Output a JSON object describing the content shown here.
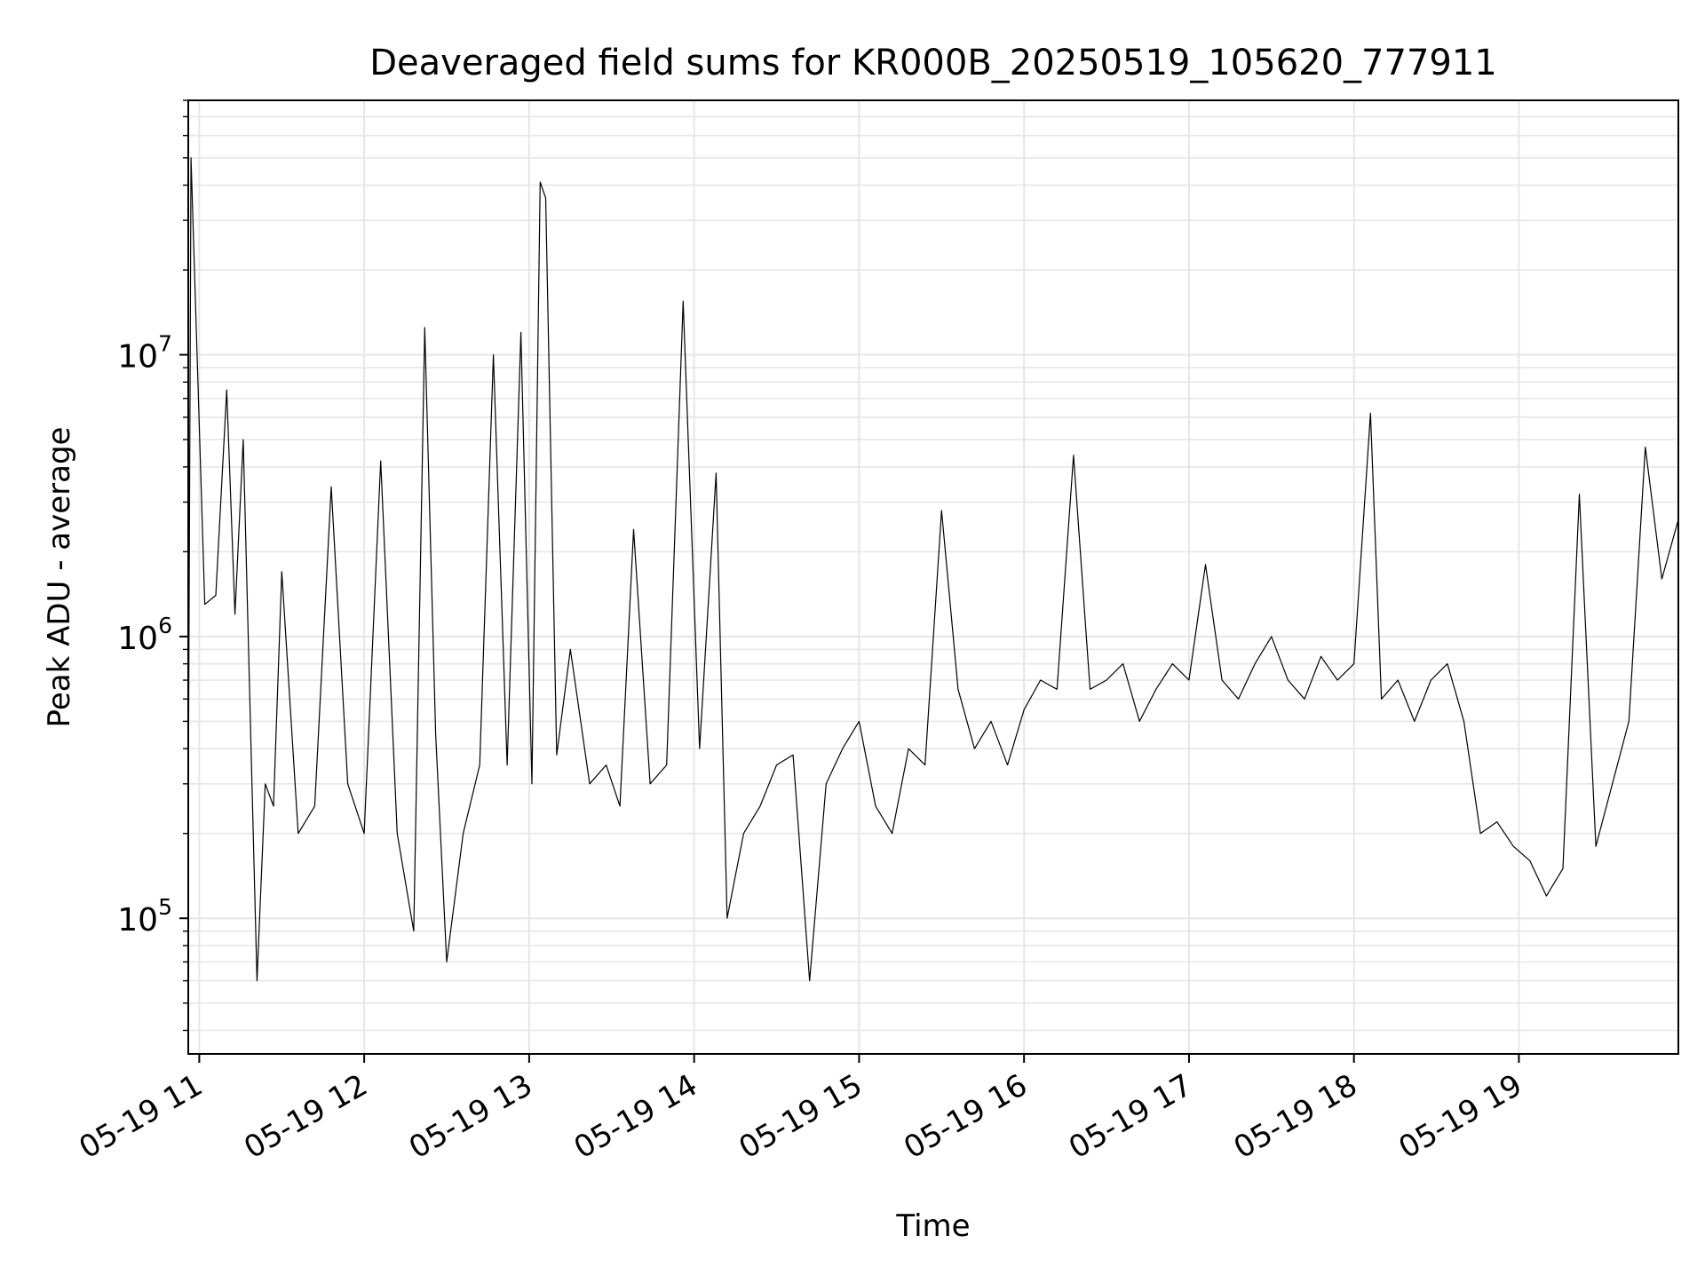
{
  "chart_data": {
    "type": "line",
    "title": "Deaveraged field sums for KR000B_20250519_105620_777911",
    "xlabel": "Time",
    "ylabel": "Peak ADU - average",
    "y_scale": "log",
    "ylim": [
      33000,
      80000000
    ],
    "xlim": [
      "05-19 10:56",
      "05-19 19:58"
    ],
    "grid": true,
    "grid_minor": true,
    "line_color": "#000000",
    "grid_color": "#e6e6e6",
    "x_ticks": [
      {
        "value": "05-19 11:00",
        "label": "05-19 11"
      },
      {
        "value": "05-19 12:00",
        "label": "05-19 12"
      },
      {
        "value": "05-19 13:00",
        "label": "05-19 13"
      },
      {
        "value": "05-19 14:00",
        "label": "05-19 14"
      },
      {
        "value": "05-19 15:00",
        "label": "05-19 15"
      },
      {
        "value": "05-19 16:00",
        "label": "05-19 16"
      },
      {
        "value": "05-19 17:00",
        "label": "05-19 17"
      },
      {
        "value": "05-19 18:00",
        "label": "05-19 18"
      },
      {
        "value": "05-19 19:00",
        "label": "05-19 19"
      }
    ],
    "y_ticks": [
      {
        "value": 100000,
        "base": "10",
        "exp": "5"
      },
      {
        "value": 1000000,
        "base": "10",
        "exp": "6"
      },
      {
        "value": 10000000,
        "base": "10",
        "exp": "7"
      }
    ],
    "series": [
      {
        "x": [
          "05-19 10:56",
          "05-19 10:57",
          "05-19 11:02",
          "05-19 11:06",
          "05-19 11:10",
          "05-19 11:13",
          "05-19 11:16",
          "05-19 11:19",
          "05-19 11:21",
          "05-19 11:24",
          "05-19 11:27",
          "05-19 11:30",
          "05-19 11:36",
          "05-19 11:42",
          "05-19 11:48",
          "05-19 11:54",
          "05-19 12:00",
          "05-19 12:06",
          "05-19 12:12",
          "05-19 12:18",
          "05-19 12:22",
          "05-19 12:26",
          "05-19 12:30",
          "05-19 12:36",
          "05-19 12:42",
          "05-19 12:47",
          "05-19 12:52",
          "05-19 12:57",
          "05-19 13:01",
          "05-19 13:04",
          "05-19 13:06",
          "05-19 13:10",
          "05-19 13:15",
          "05-19 13:22",
          "05-19 13:28",
          "05-19 13:33",
          "05-19 13:38",
          "05-19 13:44",
          "05-19 13:50",
          "05-19 13:56",
          "05-19 14:02",
          "05-19 14:08",
          "05-19 14:12",
          "05-19 14:18",
          "05-19 14:24",
          "05-19 14:30",
          "05-19 14:36",
          "05-19 14:42",
          "05-19 14:48",
          "05-19 14:54",
          "05-19 15:00",
          "05-19 15:06",
          "05-19 15:12",
          "05-19 15:18",
          "05-19 15:24",
          "05-19 15:30",
          "05-19 15:36",
          "05-19 15:42",
          "05-19 15:48",
          "05-19 15:54",
          "05-19 16:00",
          "05-19 16:06",
          "05-19 16:12",
          "05-19 16:18",
          "05-19 16:24",
          "05-19 16:30",
          "05-19 16:36",
          "05-19 16:42",
          "05-19 16:48",
          "05-19 16:54",
          "05-19 17:00",
          "05-19 17:06",
          "05-19 17:12",
          "05-19 17:18",
          "05-19 17:24",
          "05-19 17:30",
          "05-19 17:36",
          "05-19 17:42",
          "05-19 17:48",
          "05-19 17:54",
          "05-19 18:00",
          "05-19 18:06",
          "05-19 18:10",
          "05-19 18:16",
          "05-19 18:22",
          "05-19 18:28",
          "05-19 18:34",
          "05-19 18:40",
          "05-19 18:46",
          "05-19 18:52",
          "05-19 18:58",
          "05-19 19:04",
          "05-19 19:10",
          "05-19 19:16",
          "05-19 19:22",
          "05-19 19:28",
          "05-19 19:34",
          "05-19 19:40",
          "05-19 19:46",
          "05-19 19:52",
          "05-19 19:58"
        ],
        "y": [
          240000,
          50000000,
          1300000,
          1400000,
          7500000,
          1200000,
          5000000,
          350000,
          60000,
          300000,
          250000,
          1700000,
          200000,
          250000,
          3400000,
          300000,
          200000,
          4200000,
          200000,
          90000,
          12500000,
          450000,
          70000,
          200000,
          350000,
          10000000,
          350000,
          12000000,
          300000,
          41000000,
          36000000,
          380000,
          900000,
          300000,
          350000,
          250000,
          2400000,
          300000,
          350000,
          15500000,
          400000,
          3800000,
          100000,
          200000,
          250000,
          350000,
          380000,
          60000,
          300000,
          400000,
          500000,
          250000,
          200000,
          400000,
          350000,
          2800000,
          650000,
          400000,
          500000,
          350000,
          550000,
          700000,
          650000,
          4400000,
          650000,
          700000,
          800000,
          500000,
          650000,
          800000,
          700000,
          1800000,
          700000,
          600000,
          800000,
          1000000,
          700000,
          600000,
          850000,
          700000,
          800000,
          6200000,
          600000,
          700000,
          500000,
          700000,
          800000,
          500000,
          200000,
          220000,
          180000,
          160000,
          120000,
          150000,
          3200000,
          180000,
          300000,
          500000,
          4700000,
          1600000,
          2600000
        ]
      }
    ]
  }
}
